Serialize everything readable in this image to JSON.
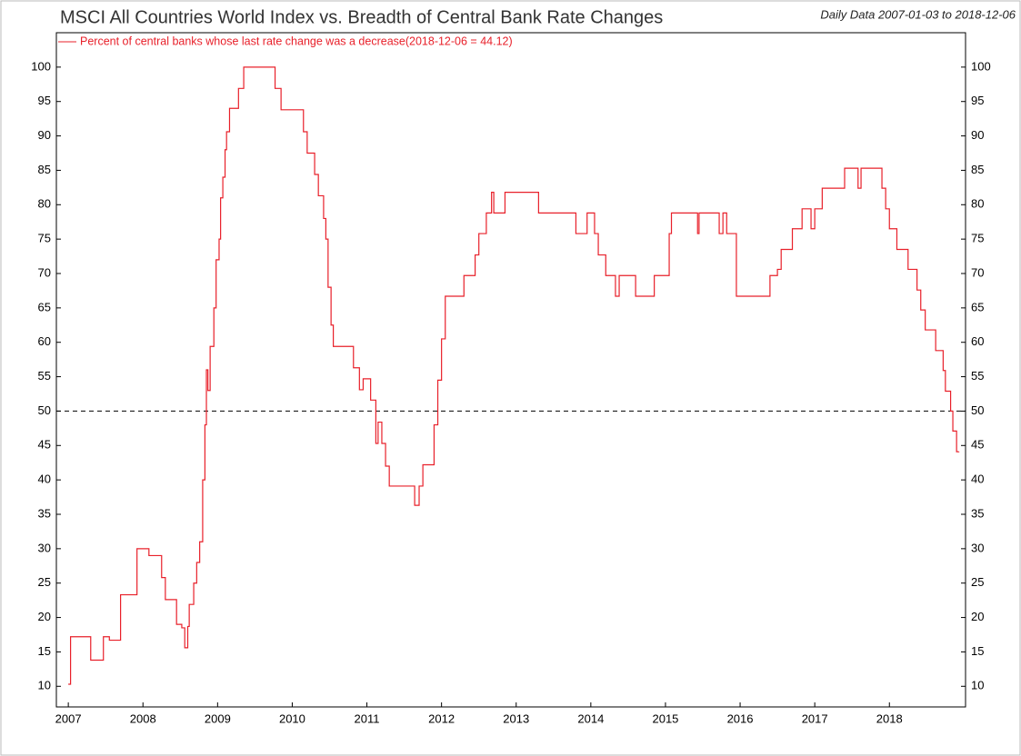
{
  "chart_data": {
    "type": "step_line",
    "title": "MSCI All Countries World Index vs. Breadth of Central Bank Rate Changes",
    "subtitle": "Daily Data 2007-01-03 to 2018-12-06",
    "xlim": [
      2006.84,
      2019.02
    ],
    "xticks": [
      2007,
      2008,
      2009,
      2010,
      2011,
      2012,
      2013,
      2014,
      2015,
      2016,
      2017,
      2018
    ],
    "ylim": [
      7,
      105
    ],
    "yticks": [
      10,
      15,
      20,
      25,
      30,
      35,
      40,
      45,
      50,
      55,
      60,
      65,
      70,
      75,
      80,
      85,
      90,
      95,
      100
    ],
    "reference_line": 50,
    "series": [
      {
        "name": "Percent of central banks whose last rate change was a decrease(2018-12-06 = 44.12)",
        "color": "#e8202a",
        "x": [
          2007.0,
          2007.03,
          2007.3,
          2007.47,
          2007.55,
          2007.7,
          2007.92,
          2008.08,
          2008.25,
          2008.3,
          2008.45,
          2008.52,
          2008.56,
          2008.6,
          2008.62,
          2008.68,
          2008.72,
          2008.76,
          2008.8,
          2008.83,
          2008.85,
          2008.87,
          2008.9,
          2008.95,
          2008.98,
          2009.02,
          2009.04,
          2009.07,
          2009.1,
          2009.12,
          2009.16,
          2009.28,
          2009.35,
          2009.77,
          2009.85,
          2010.15,
          2010.2,
          2010.3,
          2010.35,
          2010.42,
          2010.45,
          2010.48,
          2010.52,
          2010.55,
          2010.82,
          2010.9,
          2010.95,
          2011.05,
          2011.12,
          2011.15,
          2011.2,
          2011.25,
          2011.3,
          2011.64,
          2011.7,
          2011.75,
          2011.9,
          2011.95,
          2012.0,
          2012.05,
          2012.3,
          2012.45,
          2012.5,
          2012.6,
          2012.67,
          2012.7,
          2012.85,
          2013.3,
          2013.8,
          2013.95,
          2014.05,
          2014.1,
          2014.2,
          2014.33,
          2014.38,
          2014.6,
          2014.85,
          2015.05,
          2015.08,
          2015.43,
          2015.45,
          2015.72,
          2015.77,
          2015.82,
          2015.95,
          2016.4,
          2016.5,
          2016.55,
          2016.7,
          2016.83,
          2016.95,
          2017.0,
          2017.1,
          2017.4,
          2017.58,
          2017.62,
          2017.9,
          2017.95,
          2018.0,
          2018.1,
          2018.25,
          2018.37,
          2018.42,
          2018.48,
          2018.62,
          2018.72,
          2018.75,
          2018.82,
          2018.85,
          2018.9,
          2018.93
        ],
        "values": [
          10.3,
          17.2,
          13.8,
          17.2,
          16.7,
          23.3,
          30,
          29,
          25.8,
          22.6,
          19,
          18.5,
          15.6,
          18.7,
          21.9,
          25,
          28,
          31,
          40,
          48,
          56,
          53,
          59.4,
          65,
          72,
          75,
          81,
          84,
          88,
          90.6,
          94,
          96.9,
          100,
          96.9,
          93.8,
          90.6,
          87.5,
          84.4,
          81.3,
          78,
          75,
          68,
          62.5,
          59.4,
          56.3,
          53.1,
          54.7,
          51.6,
          45.3,
          48.4,
          45.3,
          42,
          39.1,
          36.3,
          39.1,
          42.2,
          48,
          54.5,
          60.5,
          66.7,
          69.7,
          72.7,
          75.8,
          78.8,
          81.8,
          78.8,
          81.8,
          78.8,
          75.8,
          78.8,
          75.8,
          72.7,
          69.7,
          66.7,
          69.7,
          66.7,
          69.7,
          75.8,
          78.8,
          75.8,
          78.8,
          75.8,
          78.8,
          75.8,
          66.7,
          69.7,
          70.6,
          73.5,
          76.5,
          79.4,
          76.5,
          79.4,
          82.4,
          85.3,
          82.4,
          85.3,
          82.4,
          79.4,
          76.5,
          73.5,
          70.6,
          67.6,
          64.7,
          61.8,
          58.8,
          55.9,
          52.9,
          50,
          47.1,
          44.1,
          44.12
        ]
      }
    ]
  }
}
